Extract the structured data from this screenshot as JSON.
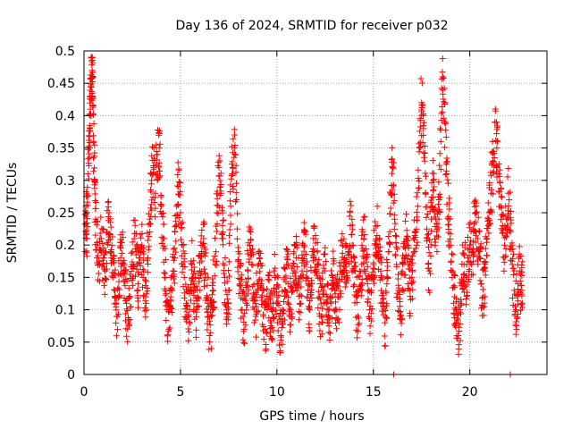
{
  "chart_data": {
    "type": "scatter",
    "title": "Day 136 of 2024, SRMTID for receiver p032",
    "xlabel": "GPS time / hours",
    "ylabel": "SRMTID / TECUs",
    "xlim": [
      0,
      24
    ],
    "ylim": [
      0,
      0.5
    ],
    "xticks": [
      0,
      5,
      10,
      15,
      20
    ],
    "xtick_labels": [
      "0",
      "5",
      "10",
      "15",
      "20"
    ],
    "yticks": [
      0,
      0.05,
      0.1,
      0.15,
      0.2,
      0.25,
      0.3,
      0.35,
      0.4,
      0.45,
      0.5
    ],
    "ytick_labels": [
      "0",
      "0.05",
      "0.1",
      "0.15",
      "0.2",
      "0.25",
      "0.3",
      "0.35",
      "0.4",
      "0.45",
      "0.5"
    ],
    "grid": true,
    "marker": "+",
    "marker_color": "#ff0000",
    "series": [
      {
        "name": "SRMTID",
        "points": [
          [
            0.05,
            0.19
          ],
          [
            0.1,
            0.26
          ],
          [
            0.15,
            0.21
          ],
          [
            0.2,
            0.31
          ],
          [
            0.25,
            0.35
          ],
          [
            0.3,
            0.38
          ],
          [
            0.33,
            0.41
          ],
          [
            0.36,
            0.45
          ],
          [
            0.4,
            0.49
          ],
          [
            0.42,
            0.47
          ],
          [
            0.45,
            0.43
          ],
          [
            0.5,
            0.36
          ],
          [
            0.55,
            0.3
          ],
          [
            0.6,
            0.24
          ],
          [
            0.7,
            0.2
          ],
          [
            0.8,
            0.17
          ],
          [
            0.9,
            0.21
          ],
          [
            1.0,
            0.18
          ],
          [
            1.1,
            0.16
          ],
          [
            1.2,
            0.22
          ],
          [
            1.3,
            0.25
          ],
          [
            1.4,
            0.19
          ],
          [
            1.5,
            0.15
          ],
          [
            1.6,
            0.13
          ],
          [
            1.7,
            0.09
          ],
          [
            1.8,
            0.12
          ],
          [
            1.9,
            0.18
          ],
          [
            2.0,
            0.22
          ],
          [
            2.1,
            0.16
          ],
          [
            2.2,
            0.11
          ],
          [
            2.3,
            0.08
          ],
          [
            2.4,
            0.12
          ],
          [
            2.5,
            0.17
          ],
          [
            2.6,
            0.21
          ],
          [
            2.7,
            0.19
          ],
          [
            2.8,
            0.14
          ],
          [
            2.9,
            0.18
          ],
          [
            3.0,
            0.2
          ],
          [
            3.1,
            0.16
          ],
          [
            3.2,
            0.12
          ],
          [
            3.3,
            0.18
          ],
          [
            3.4,
            0.24
          ],
          [
            3.5,
            0.3
          ],
          [
            3.6,
            0.32
          ],
          [
            3.7,
            0.28
          ],
          [
            3.8,
            0.34
          ],
          [
            3.9,
            0.35
          ],
          [
            4.0,
            0.26
          ],
          [
            4.1,
            0.21
          ],
          [
            4.2,
            0.15
          ],
          [
            4.3,
            0.1
          ],
          [
            4.4,
            0.07
          ],
          [
            4.5,
            0.12
          ],
          [
            4.6,
            0.16
          ],
          [
            4.7,
            0.18
          ],
          [
            4.8,
            0.26
          ],
          [
            4.9,
            0.29
          ],
          [
            5.0,
            0.25
          ],
          [
            5.1,
            0.2
          ],
          [
            5.2,
            0.15
          ],
          [
            5.3,
            0.11
          ],
          [
            5.4,
            0.09
          ],
          [
            5.5,
            0.13
          ],
          [
            5.6,
            0.17
          ],
          [
            5.7,
            0.14
          ],
          [
            5.8,
            0.1
          ],
          [
            5.9,
            0.12
          ],
          [
            6.0,
            0.16
          ],
          [
            6.1,
            0.19
          ],
          [
            6.2,
            0.21
          ],
          [
            6.3,
            0.15
          ],
          [
            6.4,
            0.11
          ],
          [
            6.5,
            0.06
          ],
          [
            6.6,
            0.09
          ],
          [
            6.7,
            0.13
          ],
          [
            6.8,
            0.17
          ],
          [
            6.9,
            0.25
          ],
          [
            7.0,
            0.32
          ],
          [
            7.1,
            0.28
          ],
          [
            7.2,
            0.21
          ],
          [
            7.3,
            0.15
          ],
          [
            7.4,
            0.1
          ],
          [
            7.5,
            0.13
          ],
          [
            7.6,
            0.26
          ],
          [
            7.7,
            0.32
          ],
          [
            7.8,
            0.35
          ],
          [
            7.9,
            0.27
          ],
          [
            8.0,
            0.19
          ],
          [
            8.1,
            0.14
          ],
          [
            8.2,
            0.1
          ],
          [
            8.3,
            0.07
          ],
          [
            8.4,
            0.11
          ],
          [
            8.5,
            0.16
          ],
          [
            8.6,
            0.2
          ],
          [
            8.7,
            0.17
          ],
          [
            8.8,
            0.12
          ],
          [
            8.9,
            0.09
          ],
          [
            9.0,
            0.13
          ],
          [
            9.1,
            0.18
          ],
          [
            9.2,
            0.14
          ],
          [
            9.3,
            0.09
          ],
          [
            9.4,
            0.07
          ],
          [
            9.5,
            0.1
          ],
          [
            9.6,
            0.12
          ],
          [
            9.7,
            0.08
          ],
          [
            9.8,
            0.11
          ],
          [
            9.9,
            0.15
          ],
          [
            10.0,
            0.12
          ],
          [
            10.1,
            0.09
          ],
          [
            10.2,
            0.06
          ],
          [
            10.3,
            0.1
          ],
          [
            10.4,
            0.13
          ],
          [
            10.5,
            0.17
          ],
          [
            10.6,
            0.14
          ],
          [
            10.7,
            0.1
          ],
          [
            10.8,
            0.13
          ],
          [
            10.9,
            0.16
          ],
          [
            11.0,
            0.18
          ],
          [
            11.1,
            0.14
          ],
          [
            11.2,
            0.11
          ],
          [
            11.3,
            0.16
          ],
          [
            11.4,
            0.2
          ],
          [
            11.5,
            0.17
          ],
          [
            11.6,
            0.13
          ],
          [
            11.7,
            0.1
          ],
          [
            11.8,
            0.14
          ],
          [
            11.9,
            0.18
          ],
          [
            12.0,
            0.21
          ],
          [
            12.1,
            0.17
          ],
          [
            12.2,
            0.12
          ],
          [
            12.3,
            0.09
          ],
          [
            12.4,
            0.13
          ],
          [
            12.5,
            0.16
          ],
          [
            12.6,
            0.12
          ],
          [
            12.7,
            0.08
          ],
          [
            12.8,
            0.11
          ],
          [
            12.9,
            0.15
          ],
          [
            13.0,
            0.13
          ],
          [
            13.1,
            0.1
          ],
          [
            13.2,
            0.12
          ],
          [
            13.3,
            0.16
          ],
          [
            13.4,
            0.2
          ],
          [
            13.5,
            0.18
          ],
          [
            13.6,
            0.15
          ],
          [
            13.7,
            0.19
          ],
          [
            13.8,
            0.23
          ],
          [
            13.9,
            0.2
          ],
          [
            14.0,
            0.16
          ],
          [
            14.1,
            0.12
          ],
          [
            14.2,
            0.09
          ],
          [
            14.3,
            0.13
          ],
          [
            14.4,
            0.17
          ],
          [
            14.5,
            0.21
          ],
          [
            14.6,
            0.18
          ],
          [
            14.7,
            0.14
          ],
          [
            14.8,
            0.1
          ],
          [
            14.9,
            0.13
          ],
          [
            15.0,
            0.17
          ],
          [
            15.1,
            0.2
          ],
          [
            15.2,
            0.23
          ],
          [
            15.3,
            0.19
          ],
          [
            15.4,
            0.15
          ],
          [
            15.5,
            0.11
          ],
          [
            15.6,
            0.08
          ],
          [
            15.7,
            0.14
          ],
          [
            15.8,
            0.19
          ],
          [
            15.9,
            0.28
          ],
          [
            16.0,
            0.32
          ],
          [
            16.1,
            0.24
          ],
          [
            16.2,
            0.17
          ],
          [
            16.3,
            0.13
          ],
          [
            16.4,
            0.09
          ],
          [
            16.5,
            0.13
          ],
          [
            16.6,
            0.18
          ],
          [
            16.7,
            0.21
          ],
          [
            16.8,
            0.17
          ],
          [
            16.9,
            0.13
          ],
          [
            17.0,
            0.15
          ],
          [
            17.1,
            0.19
          ],
          [
            17.2,
            0.22
          ],
          [
            17.3,
            0.26
          ],
          [
            17.4,
            0.35
          ],
          [
            17.5,
            0.42
          ],
          [
            17.6,
            0.38
          ],
          [
            17.7,
            0.28
          ],
          [
            17.8,
            0.21
          ],
          [
            17.9,
            0.16
          ],
          [
            18.0,
            0.24
          ],
          [
            18.1,
            0.3
          ],
          [
            18.2,
            0.25
          ],
          [
            18.3,
            0.19
          ],
          [
            18.4,
            0.27
          ],
          [
            18.5,
            0.36
          ],
          [
            18.6,
            0.46
          ],
          [
            18.7,
            0.39
          ],
          [
            18.8,
            0.31
          ],
          [
            18.9,
            0.24
          ],
          [
            19.0,
            0.2
          ],
          [
            19.1,
            0.16
          ],
          [
            19.2,
            0.12
          ],
          [
            19.3,
            0.08
          ],
          [
            19.4,
            0.06
          ],
          [
            19.5,
            0.1
          ],
          [
            19.6,
            0.14
          ],
          [
            19.7,
            0.17
          ],
          [
            19.8,
            0.15
          ],
          [
            19.9,
            0.18
          ],
          [
            20.0,
            0.2
          ],
          [
            20.1,
            0.17
          ],
          [
            20.2,
            0.22
          ],
          [
            20.3,
            0.25
          ],
          [
            20.4,
            0.21
          ],
          [
            20.5,
            0.18
          ],
          [
            20.6,
            0.14
          ],
          [
            20.7,
            0.12
          ],
          [
            20.8,
            0.16
          ],
          [
            20.9,
            0.21
          ],
          [
            21.0,
            0.25
          ],
          [
            21.1,
            0.28
          ],
          [
            21.2,
            0.33
          ],
          [
            21.3,
            0.39
          ],
          [
            21.4,
            0.35
          ],
          [
            21.5,
            0.31
          ],
          [
            21.6,
            0.26
          ],
          [
            21.7,
            0.23
          ],
          [
            21.8,
            0.2
          ],
          [
            21.9,
            0.24
          ],
          [
            22.0,
            0.28
          ],
          [
            22.1,
            0.22
          ],
          [
            22.2,
            0.17
          ],
          [
            22.3,
            0.13
          ],
          [
            22.4,
            0.1
          ],
          [
            22.5,
            0.14
          ],
          [
            22.6,
            0.16
          ],
          [
            22.7,
            0.13
          ],
          [
            16.05,
            0.0
          ],
          [
            22.1,
            0.0
          ]
        ]
      }
    ]
  }
}
